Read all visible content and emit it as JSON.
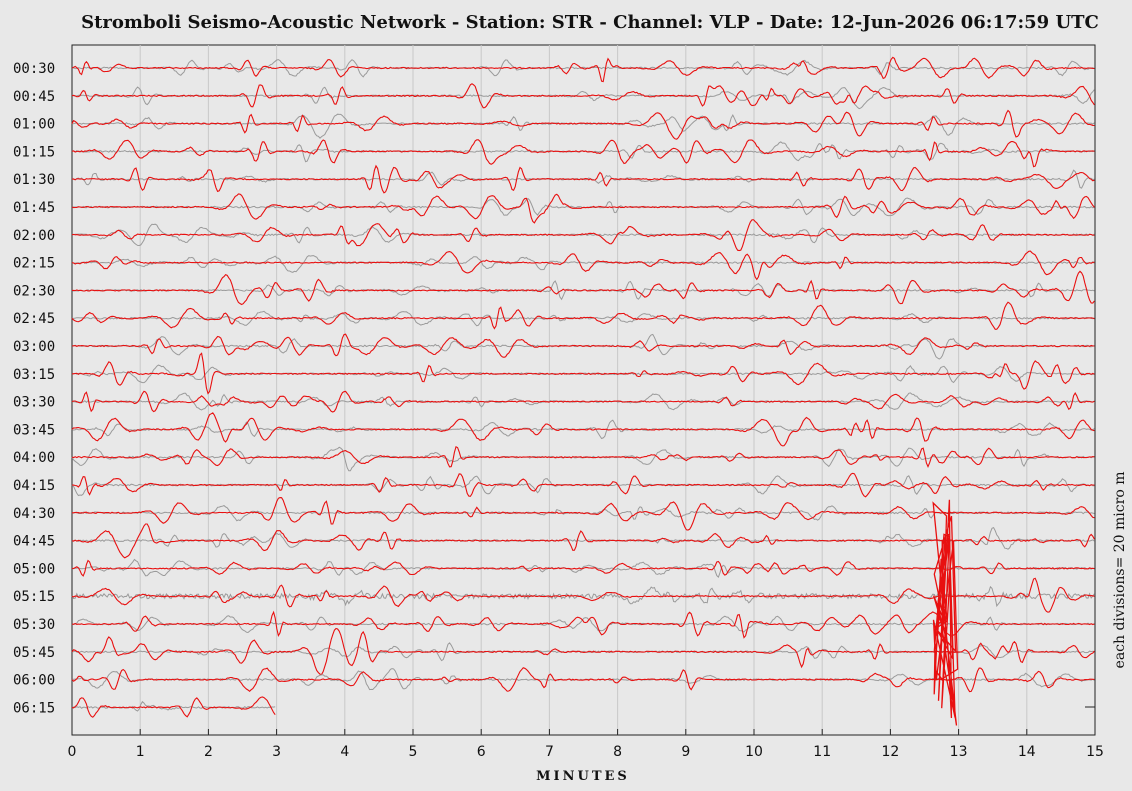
{
  "chart_data": {
    "type": "line",
    "title": "Stromboli Seismo-Acoustic Network - Station: STR - Channel: VLP - Date: 12-Jun-2026 06:17:59 UTC",
    "xlabel": "MINUTES",
    "ylabel": "each divisions= 20 micro m",
    "x_ticks": [
      0,
      1,
      2,
      3,
      4,
      5,
      6,
      7,
      8,
      9,
      10,
      11,
      12,
      13,
      14,
      15
    ],
    "xlim": [
      0,
      15
    ],
    "grid": true,
    "series": [
      {
        "values": []
      },
      {
        "values": []
      }
    ],
    "colors": {
      "primary": "#e81010",
      "secondary": "#9a9a9a",
      "grid": "#c8c8c8"
    },
    "rows": [
      {
        "label": "00:30",
        "end": 15
      },
      {
        "label": "00:45",
        "end": 15
      },
      {
        "label": "01:00",
        "end": 15
      },
      {
        "label": "01:15",
        "end": 15
      },
      {
        "label": "01:30",
        "end": 15
      },
      {
        "label": "01:45",
        "end": 15
      },
      {
        "label": "02:00",
        "end": 15
      },
      {
        "label": "02:15",
        "end": 15
      },
      {
        "label": "02:30",
        "end": 15
      },
      {
        "label": "02:45",
        "end": 15
      },
      {
        "label": "03:00",
        "end": 15
      },
      {
        "label": "03:15",
        "end": 15
      },
      {
        "label": "03:30",
        "end": 15
      },
      {
        "label": "03:45",
        "end": 15
      },
      {
        "label": "04:00",
        "end": 15
      },
      {
        "label": "04:15",
        "end": 15
      },
      {
        "label": "04:30",
        "end": 15
      },
      {
        "label": "04:45",
        "end": 15
      },
      {
        "label": "05:00",
        "end": 15
      },
      {
        "label": "05:15",
        "end": 15
      },
      {
        "label": "05:30",
        "end": 15
      },
      {
        "label": "05:45",
        "end": 15
      },
      {
        "label": "06:00",
        "end": 15
      },
      {
        "label": "06:15",
        "end": 3
      }
    ]
  }
}
